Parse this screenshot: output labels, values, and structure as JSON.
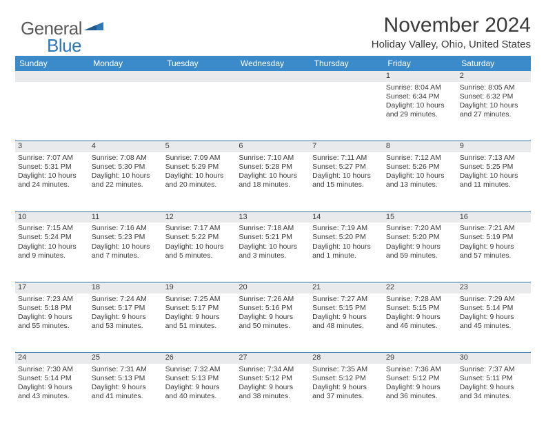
{
  "brand": {
    "part1": "General",
    "part2": "Blue"
  },
  "colors": {
    "header_bg": "#3b8aca",
    "header_text": "#ffffff",
    "daynum_bg": "#e9eaeb",
    "rule": "#2f6ea3",
    "text": "#3a3a3a",
    "logo_blue": "#2f77b7",
    "logo_gray": "#5a5a5a",
    "page_bg": "#ffffff"
  },
  "fonts": {
    "title_pt": 30,
    "location_pt": 15,
    "th_pt": 12,
    "cell_pt": 10.5
  },
  "title": "November 2024",
  "location": "Holiday Valley, Ohio, United States",
  "weekdays": [
    "Sunday",
    "Monday",
    "Tuesday",
    "Wednesday",
    "Thursday",
    "Friday",
    "Saturday"
  ],
  "weeks": [
    [
      null,
      null,
      null,
      null,
      null,
      {
        "n": "1",
        "sr": "Sunrise: 8:04 AM",
        "ss": "Sunset: 6:34 PM",
        "d1": "Daylight: 10 hours",
        "d2": "and 29 minutes."
      },
      {
        "n": "2",
        "sr": "Sunrise: 8:05 AM",
        "ss": "Sunset: 6:32 PM",
        "d1": "Daylight: 10 hours",
        "d2": "and 27 minutes."
      }
    ],
    [
      {
        "n": "3",
        "sr": "Sunrise: 7:07 AM",
        "ss": "Sunset: 5:31 PM",
        "d1": "Daylight: 10 hours",
        "d2": "and 24 minutes."
      },
      {
        "n": "4",
        "sr": "Sunrise: 7:08 AM",
        "ss": "Sunset: 5:30 PM",
        "d1": "Daylight: 10 hours",
        "d2": "and 22 minutes."
      },
      {
        "n": "5",
        "sr": "Sunrise: 7:09 AM",
        "ss": "Sunset: 5:29 PM",
        "d1": "Daylight: 10 hours",
        "d2": "and 20 minutes."
      },
      {
        "n": "6",
        "sr": "Sunrise: 7:10 AM",
        "ss": "Sunset: 5:28 PM",
        "d1": "Daylight: 10 hours",
        "d2": "and 18 minutes."
      },
      {
        "n": "7",
        "sr": "Sunrise: 7:11 AM",
        "ss": "Sunset: 5:27 PM",
        "d1": "Daylight: 10 hours",
        "d2": "and 15 minutes."
      },
      {
        "n": "8",
        "sr": "Sunrise: 7:12 AM",
        "ss": "Sunset: 5:26 PM",
        "d1": "Daylight: 10 hours",
        "d2": "and 13 minutes."
      },
      {
        "n": "9",
        "sr": "Sunrise: 7:13 AM",
        "ss": "Sunset: 5:25 PM",
        "d1": "Daylight: 10 hours",
        "d2": "and 11 minutes."
      }
    ],
    [
      {
        "n": "10",
        "sr": "Sunrise: 7:15 AM",
        "ss": "Sunset: 5:24 PM",
        "d1": "Daylight: 10 hours",
        "d2": "and 9 minutes."
      },
      {
        "n": "11",
        "sr": "Sunrise: 7:16 AM",
        "ss": "Sunset: 5:23 PM",
        "d1": "Daylight: 10 hours",
        "d2": "and 7 minutes."
      },
      {
        "n": "12",
        "sr": "Sunrise: 7:17 AM",
        "ss": "Sunset: 5:22 PM",
        "d1": "Daylight: 10 hours",
        "d2": "and 5 minutes."
      },
      {
        "n": "13",
        "sr": "Sunrise: 7:18 AM",
        "ss": "Sunset: 5:21 PM",
        "d1": "Daylight: 10 hours",
        "d2": "and 3 minutes."
      },
      {
        "n": "14",
        "sr": "Sunrise: 7:19 AM",
        "ss": "Sunset: 5:20 PM",
        "d1": "Daylight: 10 hours",
        "d2": "and 1 minute."
      },
      {
        "n": "15",
        "sr": "Sunrise: 7:20 AM",
        "ss": "Sunset: 5:20 PM",
        "d1": "Daylight: 9 hours",
        "d2": "and 59 minutes."
      },
      {
        "n": "16",
        "sr": "Sunrise: 7:21 AM",
        "ss": "Sunset: 5:19 PM",
        "d1": "Daylight: 9 hours",
        "d2": "and 57 minutes."
      }
    ],
    [
      {
        "n": "17",
        "sr": "Sunrise: 7:23 AM",
        "ss": "Sunset: 5:18 PM",
        "d1": "Daylight: 9 hours",
        "d2": "and 55 minutes."
      },
      {
        "n": "18",
        "sr": "Sunrise: 7:24 AM",
        "ss": "Sunset: 5:17 PM",
        "d1": "Daylight: 9 hours",
        "d2": "and 53 minutes."
      },
      {
        "n": "19",
        "sr": "Sunrise: 7:25 AM",
        "ss": "Sunset: 5:17 PM",
        "d1": "Daylight: 9 hours",
        "d2": "and 51 minutes."
      },
      {
        "n": "20",
        "sr": "Sunrise: 7:26 AM",
        "ss": "Sunset: 5:16 PM",
        "d1": "Daylight: 9 hours",
        "d2": "and 50 minutes."
      },
      {
        "n": "21",
        "sr": "Sunrise: 7:27 AM",
        "ss": "Sunset: 5:15 PM",
        "d1": "Daylight: 9 hours",
        "d2": "and 48 minutes."
      },
      {
        "n": "22",
        "sr": "Sunrise: 7:28 AM",
        "ss": "Sunset: 5:15 PM",
        "d1": "Daylight: 9 hours",
        "d2": "and 46 minutes."
      },
      {
        "n": "23",
        "sr": "Sunrise: 7:29 AM",
        "ss": "Sunset: 5:14 PM",
        "d1": "Daylight: 9 hours",
        "d2": "and 45 minutes."
      }
    ],
    [
      {
        "n": "24",
        "sr": "Sunrise: 7:30 AM",
        "ss": "Sunset: 5:14 PM",
        "d1": "Daylight: 9 hours",
        "d2": "and 43 minutes."
      },
      {
        "n": "25",
        "sr": "Sunrise: 7:31 AM",
        "ss": "Sunset: 5:13 PM",
        "d1": "Daylight: 9 hours",
        "d2": "and 41 minutes."
      },
      {
        "n": "26",
        "sr": "Sunrise: 7:32 AM",
        "ss": "Sunset: 5:13 PM",
        "d1": "Daylight: 9 hours",
        "d2": "and 40 minutes."
      },
      {
        "n": "27",
        "sr": "Sunrise: 7:34 AM",
        "ss": "Sunset: 5:12 PM",
        "d1": "Daylight: 9 hours",
        "d2": "and 38 minutes."
      },
      {
        "n": "28",
        "sr": "Sunrise: 7:35 AM",
        "ss": "Sunset: 5:12 PM",
        "d1": "Daylight: 9 hours",
        "d2": "and 37 minutes."
      },
      {
        "n": "29",
        "sr": "Sunrise: 7:36 AM",
        "ss": "Sunset: 5:12 PM",
        "d1": "Daylight: 9 hours",
        "d2": "and 36 minutes."
      },
      {
        "n": "30",
        "sr": "Sunrise: 7:37 AM",
        "ss": "Sunset: 5:11 PM",
        "d1": "Daylight: 9 hours",
        "d2": "and 34 minutes."
      }
    ]
  ]
}
